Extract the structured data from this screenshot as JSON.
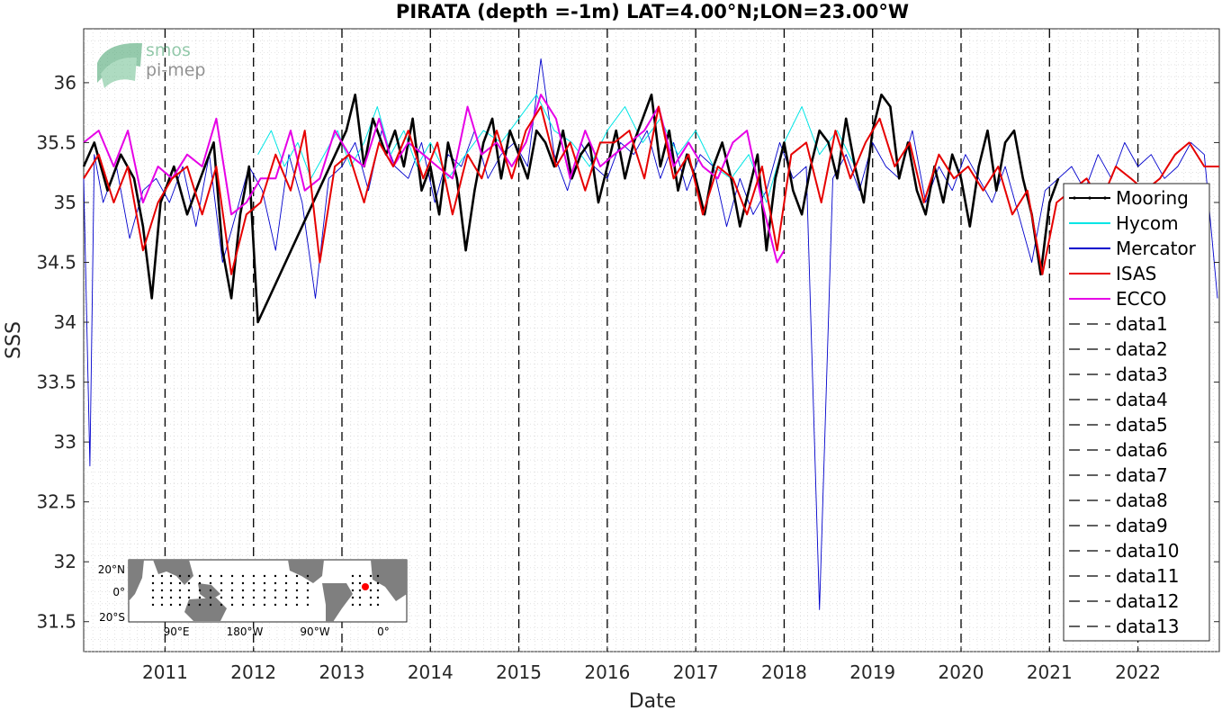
{
  "chart_data": {
    "type": "line",
    "title": "PIRATA (depth =-1m) LAT=4.00°N;LON=23.00°W",
    "xlabel": "Date",
    "ylabel": "SSS",
    "ylim": [
      31.25,
      36.45
    ],
    "xlim": [
      2010.08,
      2022.92
    ],
    "x_ticks": [
      2011,
      2012,
      2013,
      2014,
      2015,
      2016,
      2017,
      2018,
      2019,
      2020,
      2021,
      2022
    ],
    "y_ticks": [
      31.5,
      32,
      32.5,
      33,
      33.5,
      34,
      34.5,
      35,
      35.5,
      36
    ],
    "grid": "minor dotted",
    "legend_position": "right",
    "year_markers": [
      2011,
      2012,
      2013,
      2014,
      2015,
      2016,
      2017,
      2018,
      2019,
      2020,
      2021,
      2022
    ],
    "series": [
      {
        "name": "Mooring",
        "color": "#000000",
        "style": "solid-dots",
        "x": [
          2010.08,
          2010.2,
          2010.35,
          2010.5,
          2010.65,
          2010.75,
          2010.85,
          2010.95,
          2011.1,
          2011.25,
          2011.4,
          2011.55,
          2011.65,
          2011.75,
          2011.85,
          2011.95,
          2012.05,
          2013.05,
          2013.15,
          2013.25,
          2013.35,
          2013.5,
          2013.6,
          2013.7,
          2013.8,
          2013.9,
          2014.0,
          2014.1,
          2014.2,
          2014.3,
          2014.4,
          2014.5,
          2014.6,
          2014.7,
          2014.8,
          2014.9,
          2015.0,
          2015.1,
          2015.2,
          2015.3,
          2015.4,
          2015.5,
          2015.6,
          2015.7,
          2015.8,
          2015.9,
          2016.0,
          2016.1,
          2016.2,
          2016.3,
          2016.4,
          2016.5,
          2016.6,
          2016.7,
          2016.8,
          2016.9,
          2017.0,
          2017.1,
          2017.2,
          2017.3,
          2017.4,
          2017.5,
          2017.6,
          2017.7,
          2017.8,
          2017.9,
          2018.0,
          2018.1,
          2018.2,
          2018.3,
          2018.4,
          2018.5,
          2018.6,
          2018.7,
          2018.8,
          2018.9,
          2019.0,
          2019.1,
          2019.2,
          2019.3,
          2019.4,
          2019.5,
          2019.6,
          2019.7,
          2019.8,
          2019.9,
          2020.0,
          2020.1,
          2020.2,
          2020.3,
          2020.4,
          2020.5,
          2020.6,
          2020.7,
          2020.8,
          2020.9,
          2021.0,
          2021.1
        ],
        "y": [
          35.3,
          35.5,
          35.1,
          35.4,
          35.2,
          34.8,
          34.2,
          35.0,
          35.3,
          34.9,
          35.2,
          35.5,
          34.6,
          34.2,
          34.9,
          35.3,
          34.0,
          35.6,
          35.9,
          35.3,
          35.7,
          35.4,
          35.6,
          35.3,
          35.7,
          35.1,
          35.3,
          34.9,
          35.5,
          35.2,
          34.6,
          35.1,
          35.5,
          35.7,
          35.2,
          35.6,
          35.4,
          35.2,
          35.6,
          35.5,
          35.3,
          35.6,
          35.2,
          35.4,
          35.5,
          35.0,
          35.3,
          35.6,
          35.2,
          35.5,
          35.7,
          35.9,
          35.3,
          35.6,
          35.1,
          35.4,
          35.2,
          34.9,
          35.3,
          35.5,
          35.2,
          34.8,
          35.1,
          35.4,
          34.6,
          35.2,
          35.5,
          35.1,
          34.9,
          35.3,
          35.6,
          35.5,
          35.2,
          35.7,
          35.3,
          35.0,
          35.6,
          35.9,
          35.8,
          35.2,
          35.5,
          35.1,
          34.9,
          35.3,
          35.0,
          35.4,
          35.2,
          34.8,
          35.3,
          35.6,
          35.1,
          35.5,
          35.6,
          35.2,
          34.9,
          34.4,
          35.0,
          35.2
        ]
      },
      {
        "name": "Hycom",
        "color": "#00e5e5",
        "style": "solid",
        "x": [
          2012.05,
          2012.2,
          2012.35,
          2012.5,
          2012.65,
          2012.8,
          2012.95,
          2013.1,
          2013.25,
          2013.4,
          2013.55,
          2013.7,
          2013.85,
          2014.0,
          2014.2,
          2014.4,
          2014.6,
          2014.8,
          2015.0,
          2015.2,
          2015.4,
          2015.6,
          2015.8,
          2016.0,
          2016.2,
          2016.4,
          2016.6,
          2016.8,
          2017.0,
          2017.2,
          2017.4,
          2017.6,
          2017.8,
          2018.0,
          2018.2,
          2018.4,
          2018.6,
          2018.8
        ],
        "y": [
          35.4,
          35.6,
          35.3,
          35.5,
          35.2,
          35.4,
          35.6,
          35.3,
          35.5,
          35.8,
          35.4,
          35.6,
          35.3,
          35.5,
          35.2,
          35.4,
          35.6,
          35.5,
          35.7,
          35.9,
          35.6,
          35.5,
          35.3,
          35.6,
          35.8,
          35.5,
          35.7,
          35.4,
          35.6,
          35.3,
          35.2,
          35.4,
          35.0,
          35.5,
          35.8,
          35.4,
          35.6,
          35.3
        ]
      },
      {
        "name": "Mercator",
        "color": "#0000cc",
        "style": "solid",
        "x": [
          2010.08,
          2010.15,
          2010.2,
          2010.3,
          2010.45,
          2010.6,
          2010.75,
          2010.9,
          2011.05,
          2011.2,
          2011.35,
          2011.5,
          2011.65,
          2011.8,
          2011.95,
          2012.1,
          2012.25,
          2012.4,
          2012.55,
          2012.7,
          2012.85,
          2013.0,
          2013.15,
          2013.3,
          2013.45,
          2013.6,
          2013.75,
          2013.9,
          2014.05,
          2014.2,
          2014.35,
          2014.5,
          2014.65,
          2014.8,
          2014.95,
          2015.1,
          2015.25,
          2015.4,
          2015.55,
          2015.7,
          2015.85,
          2016.0,
          2016.15,
          2016.3,
          2016.45,
          2016.6,
          2016.75,
          2016.9,
          2017.05,
          2017.2,
          2017.35,
          2017.5,
          2017.65,
          2017.8,
          2017.95,
          2018.1,
          2018.25,
          2018.4,
          2018.55,
          2018.7,
          2018.85,
          2019.0,
          2019.15,
          2019.3,
          2019.45,
          2019.6,
          2019.75,
          2019.9,
          2020.05,
          2020.2,
          2020.35,
          2020.5,
          2020.65,
          2020.8,
          2020.95,
          2021.1,
          2021.25,
          2021.4,
          2021.55,
          2021.7,
          2021.85,
          2022.0,
          2022.15,
          2022.3,
          2022.45,
          2022.6,
          2022.75,
          2022.9
        ],
        "y": [
          35.2,
          32.8,
          35.4,
          35.0,
          35.3,
          34.7,
          35.1,
          35.2,
          35.0,
          35.3,
          34.8,
          35.4,
          34.5,
          34.9,
          35.3,
          35.1,
          34.6,
          35.4,
          35.0,
          34.2,
          35.2,
          35.3,
          35.5,
          35.1,
          35.6,
          35.3,
          35.2,
          35.5,
          35.0,
          35.4,
          35.3,
          35.6,
          35.2,
          35.4,
          35.5,
          35.3,
          36.2,
          35.4,
          35.1,
          35.5,
          35.3,
          35.2,
          35.5,
          35.4,
          35.6,
          35.2,
          35.5,
          35.1,
          35.4,
          35.3,
          34.8,
          35.2,
          34.9,
          35.1,
          35.5,
          35.2,
          35.3,
          31.6,
          35.2,
          35.4,
          35.1,
          35.5,
          35.3,
          35.2,
          35.6,
          35.0,
          35.3,
          35.1,
          35.4,
          35.2,
          35.0,
          35.3,
          34.9,
          34.5,
          35.1,
          35.2,
          35.3,
          35.1,
          35.4,
          35.2,
          35.5,
          35.3,
          35.4,
          35.2,
          35.3,
          35.5,
          35.4,
          34.2
        ]
      },
      {
        "name": "ISAS",
        "color": "#e60000",
        "style": "solid",
        "x": [
          2010.08,
          2010.25,
          2010.42,
          2010.58,
          2010.75,
          2010.92,
          2011.08,
          2011.25,
          2011.42,
          2011.58,
          2011.75,
          2011.92,
          2012.08,
          2012.25,
          2012.42,
          2012.58,
          2012.75,
          2012.92,
          2013.08,
          2013.25,
          2013.42,
          2013.58,
          2013.75,
          2013.92,
          2014.08,
          2014.25,
          2014.42,
          2014.58,
          2014.75,
          2014.92,
          2015.08,
          2015.25,
          2015.42,
          2015.58,
          2015.75,
          2015.92,
          2016.08,
          2016.25,
          2016.42,
          2016.58,
          2016.75,
          2016.92,
          2017.08,
          2017.25,
          2017.42,
          2017.58,
          2017.75,
          2017.92,
          2018.08,
          2018.25,
          2018.42,
          2018.58,
          2018.75,
          2018.92,
          2019.08,
          2019.25,
          2019.42,
          2019.58,
          2019.75,
          2019.92,
          2020.08,
          2020.25,
          2020.42,
          2020.58,
          2020.75,
          2020.92,
          2021.08,
          2021.25,
          2021.42,
          2021.58,
          2021.75,
          2021.92,
          2022.08,
          2022.25,
          2022.42,
          2022.58,
          2022.75,
          2022.92
        ],
        "y": [
          35.2,
          35.4,
          35.0,
          35.3,
          34.6,
          35.0,
          35.2,
          35.3,
          34.9,
          35.3,
          34.4,
          34.9,
          35.0,
          35.4,
          35.1,
          35.6,
          34.5,
          35.3,
          35.4,
          35.0,
          35.5,
          35.3,
          35.6,
          35.2,
          35.5,
          34.9,
          35.4,
          35.2,
          35.6,
          35.2,
          35.6,
          35.8,
          35.3,
          35.5,
          35.1,
          35.5,
          35.5,
          35.6,
          35.2,
          35.8,
          35.2,
          35.4,
          34.9,
          35.3,
          35.2,
          34.9,
          35.3,
          34.6,
          35.4,
          35.5,
          35.0,
          35.6,
          35.2,
          35.5,
          35.7,
          35.3,
          35.5,
          35.0,
          35.4,
          35.2,
          35.3,
          35.1,
          35.3,
          34.9,
          35.1,
          34.4,
          35.0,
          35.1,
          35.2,
          35.0,
          35.3,
          35.2,
          35.1,
          35.2,
          35.4,
          35.5,
          35.3,
          35.3
        ]
      },
      {
        "name": "ECCO",
        "color": "#e600e6",
        "style": "solid",
        "x": [
          2010.08,
          2010.25,
          2010.42,
          2010.58,
          2010.75,
          2010.92,
          2011.08,
          2011.25,
          2011.42,
          2011.58,
          2011.75,
          2011.92,
          2012.08,
          2012.25,
          2012.42,
          2012.58,
          2012.75,
          2012.92,
          2013.08,
          2013.25,
          2013.42,
          2013.58,
          2013.75,
          2013.92,
          2014.08,
          2014.25,
          2014.42,
          2014.58,
          2014.75,
          2014.92,
          2015.08,
          2015.25,
          2015.42,
          2015.58,
          2015.75,
          2015.92,
          2016.08,
          2016.25,
          2016.42,
          2016.58,
          2016.75,
          2016.92,
          2017.08,
          2017.25,
          2017.42,
          2017.58,
          2017.75,
          2017.92,
          2018.0
        ],
        "y": [
          35.5,
          35.6,
          35.3,
          35.6,
          35.0,
          35.3,
          35.2,
          35.4,
          35.3,
          35.7,
          34.9,
          35.0,
          35.2,
          35.2,
          35.6,
          35.1,
          35.2,
          35.6,
          35.4,
          35.3,
          35.7,
          35.3,
          35.5,
          35.4,
          35.3,
          35.2,
          35.8,
          35.4,
          35.5,
          35.3,
          35.5,
          35.9,
          35.7,
          35.2,
          35.6,
          35.3,
          35.4,
          35.5,
          35.6,
          35.8,
          35.3,
          35.5,
          35.3,
          35.2,
          35.5,
          35.6,
          35.0,
          34.5,
          34.6
        ]
      },
      {
        "name": "data1",
        "color": "#000000",
        "style": "dashed"
      },
      {
        "name": "data2",
        "color": "#000000",
        "style": "dashed"
      },
      {
        "name": "data3",
        "color": "#000000",
        "style": "dashed"
      },
      {
        "name": "data4",
        "color": "#000000",
        "style": "dashed"
      },
      {
        "name": "data5",
        "color": "#000000",
        "style": "dashed"
      },
      {
        "name": "data6",
        "color": "#000000",
        "style": "dashed"
      },
      {
        "name": "data7",
        "color": "#000000",
        "style": "dashed"
      },
      {
        "name": "data8",
        "color": "#000000",
        "style": "dashed"
      },
      {
        "name": "data9",
        "color": "#000000",
        "style": "dashed"
      },
      {
        "name": "data10",
        "color": "#000000",
        "style": "dashed"
      },
      {
        "name": "data11",
        "color": "#000000",
        "style": "dashed"
      },
      {
        "name": "data12",
        "color": "#000000",
        "style": "dashed"
      },
      {
        "name": "data13",
        "color": "#000000",
        "style": "dashed"
      }
    ]
  },
  "logo": {
    "line1": "smos",
    "line2": "pi-mep"
  },
  "inset_map": {
    "lat_labels": [
      "20°N",
      "0°",
      "20°S"
    ],
    "lon_labels": [
      "90°E",
      "180°W",
      "90°W",
      "0°"
    ],
    "marker_color": "#ff0000"
  }
}
